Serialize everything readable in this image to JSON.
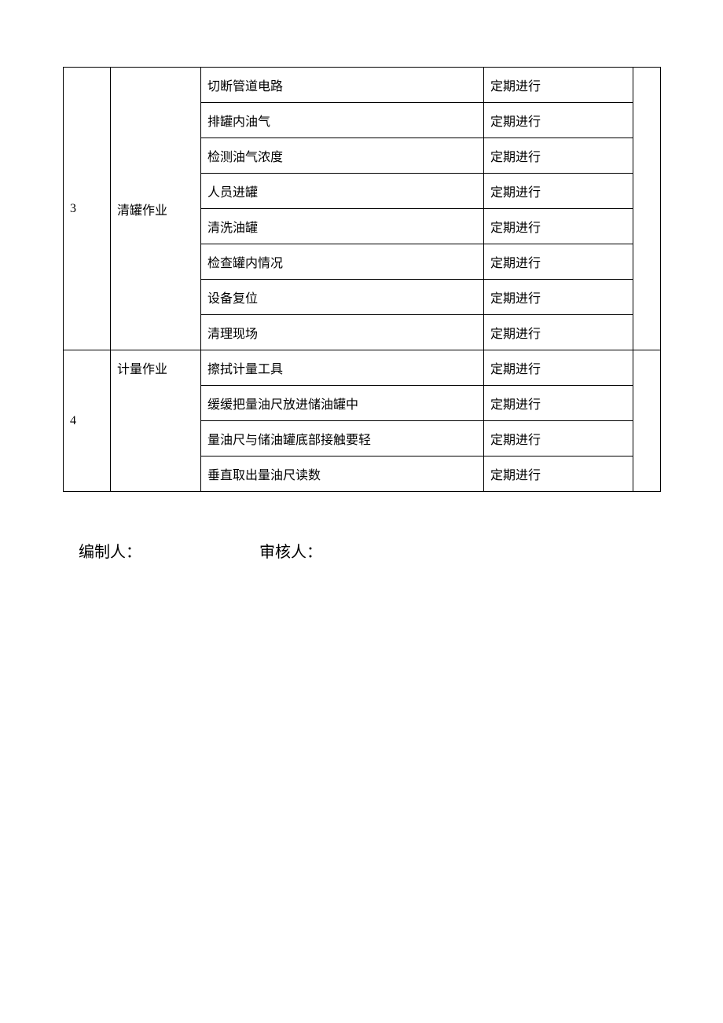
{
  "table": {
    "border_color": "#000000",
    "font_size": 16,
    "column_widths": {
      "num": 60,
      "task": 115,
      "step": 360,
      "freq": 190,
      "last": 35
    },
    "groups": [
      {
        "num": "3",
        "task": "清罐作业",
        "rows": [
          {
            "step": "切断管道电路",
            "freq": "定期进行"
          },
          {
            "step": "排罐内油气",
            "freq": "定期进行"
          },
          {
            "step": "检测油气浓度",
            "freq": "定期进行"
          },
          {
            "step": "人员进罐",
            "freq": "定期进行"
          },
          {
            "step": "清洗油罐",
            "freq": "定期进行"
          },
          {
            "step": "检查罐内情况",
            "freq": "定期进行"
          },
          {
            "step": "设备复位",
            "freq": "定期进行"
          },
          {
            "step": "清理现场",
            "freq": "定期进行"
          }
        ]
      },
      {
        "num": "4",
        "task": "计量作业",
        "rows": [
          {
            "step": "擦拭计量工具",
            "freq": "定期进行"
          },
          {
            "step": "缓缓把量油尺放进储油罐中",
            "freq": "定期进行"
          },
          {
            "step": "量油尺与储油罐底部接触要轻",
            "freq": "定期进行"
          },
          {
            "step": "垂直取出量油尺读数",
            "freq": "定期进行"
          }
        ]
      }
    ]
  },
  "signatures": {
    "author_label": "编制人：",
    "reviewer_label": "审核人：",
    "font_size": 20
  }
}
